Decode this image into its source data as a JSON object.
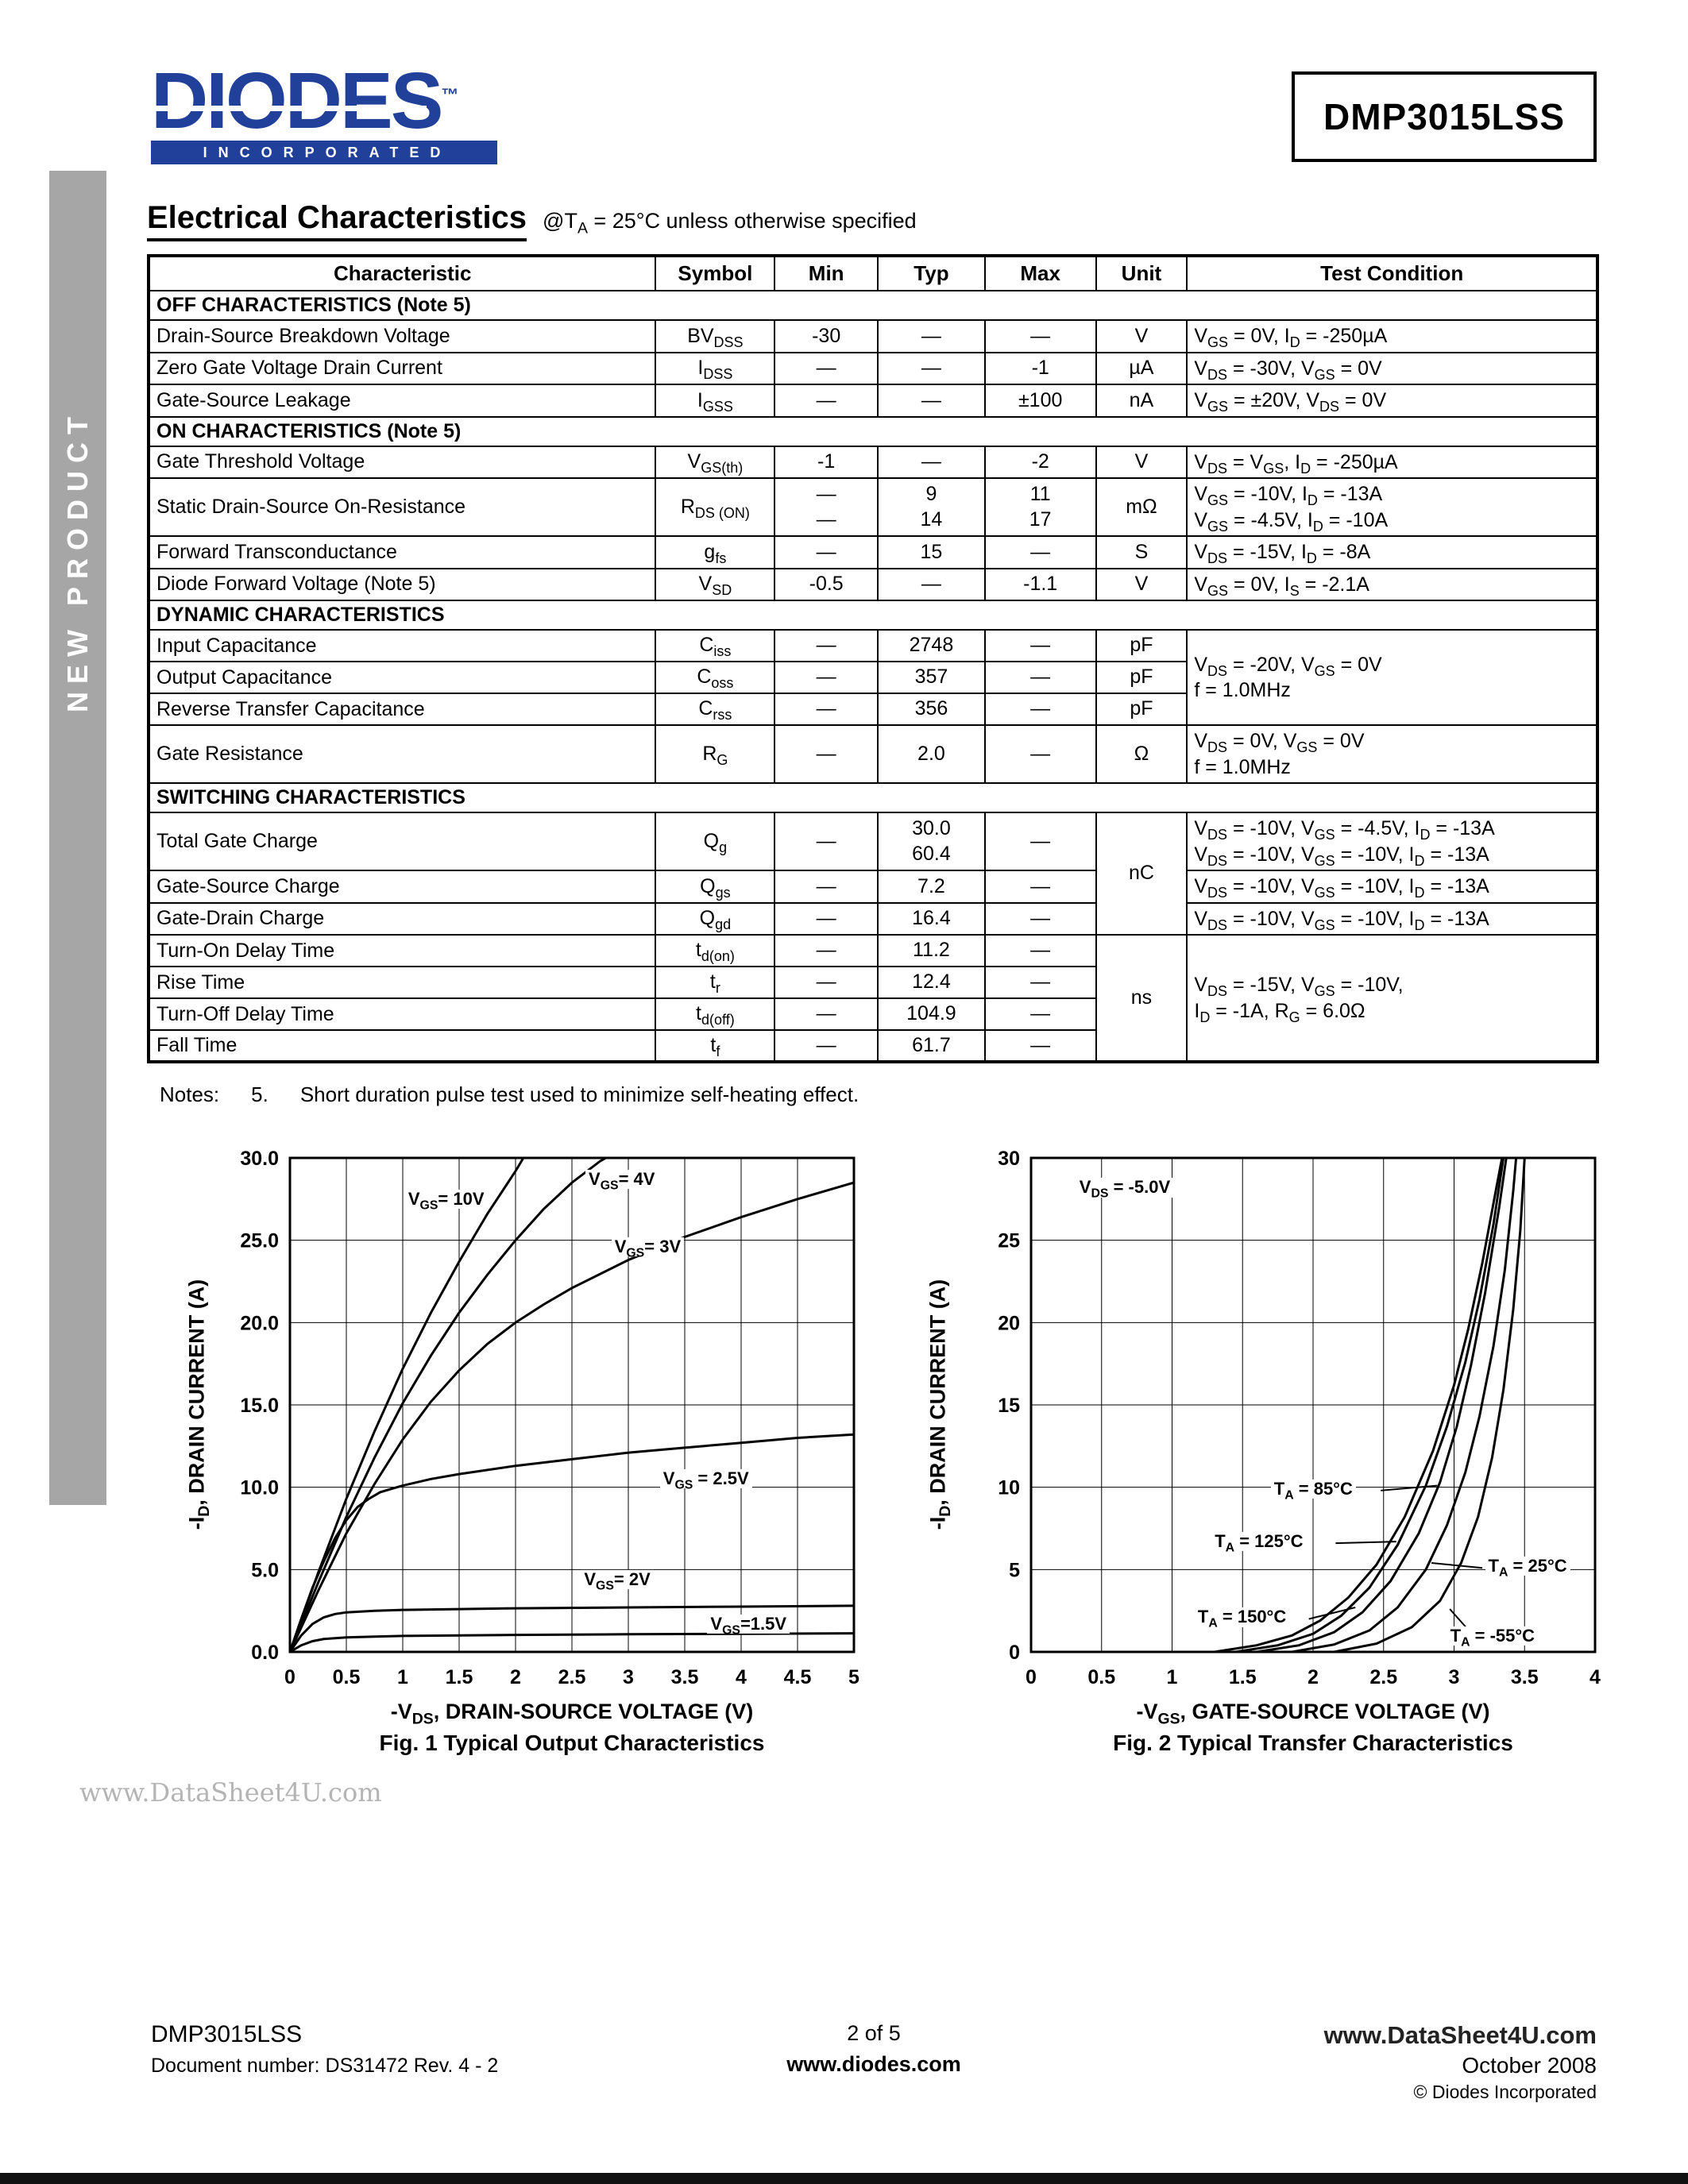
{
  "header": {
    "logo": {
      "brand": "DIODES",
      "tm": "™",
      "incorporated": "INCORPORATED"
    },
    "part_number": "DMP3015LSS"
  },
  "sidebar": {
    "label": "NEW PRODUCT"
  },
  "title": {
    "main": "Electrical Characteristics",
    "condition_html": "@T<sub>A</sub> = 25°C unless otherwise specified"
  },
  "table": {
    "headers": [
      "Characteristic",
      "Symbol",
      "Min",
      "Typ",
      "Max",
      "Unit",
      "Test Condition"
    ],
    "rows": [
      {
        "sec": "OFF CHARACTERISTICS (Note 5)"
      },
      {
        "c": "Drain-Source Breakdown Voltage",
        "s": "BV<sub>DSS</sub>",
        "mn": "-30",
        "tp": "—",
        "mx": "—",
        "u": "V",
        "tc": "V<sub>GS</sub> = 0V, I<sub>D</sub> = -250µA"
      },
      {
        "c": "Zero Gate Voltage Drain Current",
        "s": "I<sub>DSS</sub>",
        "mn": "—",
        "tp": "—",
        "mx": "-1",
        "u": "µA",
        "tc": "V<sub>DS</sub> = -30V, V<sub>GS</sub> = 0V"
      },
      {
        "c": "Gate-Source Leakage",
        "s": "I<sub>GSS</sub>",
        "mn": "—",
        "tp": "—",
        "mx": "±100",
        "u": "nA",
        "tc": "V<sub>GS</sub> = ±20V, V<sub>DS</sub> = 0V"
      },
      {
        "sec": "ON CHARACTERISTICS (Note 5)"
      },
      {
        "c": "Gate Threshold Voltage",
        "s": "V<sub>GS(th)</sub>",
        "mn": "-1",
        "tp": "—",
        "mx": "-2",
        "u": "V",
        "tc": "V<sub>DS</sub> = V<sub>GS</sub>, I<sub>D</sub> = -250µA"
      },
      {
        "c": "Static Drain-Source On-Resistance",
        "s": "R<sub>DS (ON)</sub>",
        "mn": "—<br>—",
        "tp": "9<br>14",
        "mx": "11<br>17",
        "u": "mΩ",
        "tc": "V<sub>GS</sub> = -10V, I<sub>D</sub> = -13A<br>V<sub>GS</sub> = -4.5V, I<sub>D</sub> = -10A"
      },
      {
        "c": "Forward Transconductance",
        "s": "g<sub>fs</sub>",
        "mn": "—",
        "tp": "15",
        "mx": "—",
        "u": "S",
        "tc": "V<sub>DS</sub> = -15V, I<sub>D</sub> = -8A"
      },
      {
        "c": "Diode Forward Voltage (Note 5)",
        "s": "V<sub>SD</sub>",
        "mn": "-0.5",
        "tp": "—",
        "mx": "-1.1",
        "u": "V",
        "tc": "V<sub>GS</sub> = 0V, I<sub>S</sub> = -2.1A"
      },
      {
        "sec": "DYNAMIC CHARACTERISTICS"
      },
      {
        "c": "Input Capacitance",
        "s": "C<sub>iss</sub>",
        "mn": "—",
        "tp": "2748",
        "mx": "—",
        "u": "pF",
        "tc": "V<sub>DS</sub> = -20V, V<sub>GS</sub> = 0V<br>f = 1.0MHz"
      },
      {
        "c": "Output Capacitance",
        "s": "C<sub>oss</sub>",
        "mn": "—",
        "tp": "357",
        "mx": "—",
        "u": "pF"
      },
      {
        "c": "Reverse Transfer Capacitance",
        "s": "C<sub>rss</sub>",
        "mn": "—",
        "tp": "356",
        "mx": "—",
        "u": "pF"
      },
      {
        "c": "Gate Resistance",
        "s": "R<sub>G</sub>",
        "mn": "—",
        "tp": "2.0",
        "mx": "—",
        "u": "Ω",
        "tc": "V<sub>DS</sub> = 0V, V<sub>GS</sub> = 0V<br>f = 1.0MHz"
      },
      {
        "sec": "SWITCHING CHARACTERISTICS"
      },
      {
        "c": "Total Gate Charge",
        "s": "Q<sub>g</sub>",
        "mn": "—",
        "tp": "30.0<br>60.4",
        "mx": "—",
        "u": "nC",
        "tc": "V<sub>DS</sub> = -10V, V<sub>GS</sub> = -4.5V, I<sub>D</sub> = -13A<br>V<sub>DS</sub> = -10V, V<sub>GS</sub> = -10V, I<sub>D</sub> = -13A"
      },
      {
        "c": "Gate-Source Charge",
        "s": "Q<sub>gs</sub>",
        "mn": "—",
        "tp": "7.2",
        "mx": "—",
        "tc": "V<sub>DS</sub> = -10V, V<sub>GS</sub> = -10V, I<sub>D</sub> = -13A"
      },
      {
        "c": "Gate-Drain Charge",
        "s": "Q<sub>gd</sub>",
        "mn": "—",
        "tp": "16.4",
        "mx": "—",
        "tc": "V<sub>DS</sub> = -10V, V<sub>GS</sub> = -10V, I<sub>D</sub> = -13A"
      },
      {
        "c": "Turn-On Delay Time",
        "s": "t<sub>d(on)</sub>",
        "mn": "—",
        "tp": "11.2",
        "mx": "—",
        "u": "ns",
        "tc": "V<sub>DS</sub> = -15V, V<sub>GS</sub> = -10V,<br>I<sub>D</sub> = -1A, R<sub>G</sub> = 6.0Ω"
      },
      {
        "c": "Rise Time",
        "s": "t<sub>r</sub>",
        "mn": "—",
        "tp": "12.4",
        "mx": "—"
      },
      {
        "c": "Turn-Off Delay Time",
        "s": "t<sub>d(off)</sub>",
        "mn": "—",
        "tp": "104.9",
        "mx": "—"
      },
      {
        "c": "Fall Time",
        "s": "t<sub>f</sub>",
        "mn": "—",
        "tp": "61.7",
        "mx": "—"
      }
    ]
  },
  "notes": {
    "label": "Notes:",
    "num": "5.",
    "text": "Short duration pulse test used to minimize self-heating effect."
  },
  "chart_data": [
    {
      "type": "line",
      "title": "Fig. 1 Typical Output Characteristics",
      "xlabel_html": "-V<sub>DS</sub>, DRAIN-SOURCE VOLTAGE (V)",
      "ylabel_html": "-I<sub>D</sub>, DRAIN CURRENT (A)",
      "xlim": [
        0,
        5
      ],
      "ylim": [
        0,
        30
      ],
      "grid": true,
      "legend": "inline-labels",
      "xticks": [
        0,
        0.5,
        1,
        1.5,
        2,
        2.5,
        3,
        3.5,
        4,
        4.5,
        5
      ],
      "xtick_labels": [
        "0",
        "0.5",
        "1",
        "1.5",
        "2",
        "2.5",
        "3",
        "3.5",
        "4",
        "4.5",
        "5"
      ],
      "yticks": [
        0,
        5,
        10,
        15,
        20,
        25,
        30
      ],
      "ytick_labels": [
        "0.0",
        "5.0",
        "10.0",
        "15.0",
        "20.0",
        "25.0",
        "30.0"
      ],
      "series": [
        {
          "name": "VGS = 10V",
          "points": [
            [
              0,
              0
            ],
            [
              0.25,
              4.8
            ],
            [
              0.5,
              9.3
            ],
            [
              0.75,
              13.4
            ],
            [
              1.0,
              17.2
            ],
            [
              1.25,
              20.6
            ],
            [
              1.5,
              23.7
            ],
            [
              1.75,
              26.6
            ],
            [
              2.0,
              29.2
            ],
            [
              2.07,
              30
            ]
          ]
        },
        {
          "name": "VGS = 4V",
          "points": [
            [
              0,
              0
            ],
            [
              0.25,
              4.2
            ],
            [
              0.5,
              8.2
            ],
            [
              0.75,
              11.8
            ],
            [
              1.0,
              15.1
            ],
            [
              1.25,
              18.0
            ],
            [
              1.5,
              20.6
            ],
            [
              1.75,
              22.9
            ],
            [
              2.0,
              25.0
            ],
            [
              2.25,
              26.9
            ],
            [
              2.5,
              28.5
            ],
            [
              2.75,
              29.8
            ],
            [
              2.8,
              30
            ]
          ]
        },
        {
          "name": "VGS = 3V",
          "points": [
            [
              0,
              0
            ],
            [
              0.25,
              3.7
            ],
            [
              0.5,
              7.2
            ],
            [
              0.75,
              10.2
            ],
            [
              1.0,
              12.9
            ],
            [
              1.25,
              15.2
            ],
            [
              1.5,
              17.1
            ],
            [
              1.75,
              18.7
            ],
            [
              2.0,
              20.0
            ],
            [
              2.25,
              21.1
            ],
            [
              2.5,
              22.1
            ],
            [
              3.0,
              23.8
            ],
            [
              3.5,
              25.2
            ],
            [
              4.0,
              26.4
            ],
            [
              4.5,
              27.5
            ],
            [
              5.0,
              28.5
            ]
          ]
        },
        {
          "name": "VGS = 2.5V",
          "points": [
            [
              0,
              0
            ],
            [
              0.1,
              2.0
            ],
            [
              0.2,
              3.9
            ],
            [
              0.3,
              5.5
            ],
            [
              0.4,
              6.9
            ],
            [
              0.5,
              8.0
            ],
            [
              0.6,
              8.8
            ],
            [
              0.7,
              9.3
            ],
            [
              0.8,
              9.7
            ],
            [
              0.9,
              9.9
            ],
            [
              1.0,
              10.1
            ],
            [
              1.25,
              10.5
            ],
            [
              1.5,
              10.8
            ],
            [
              2.0,
              11.3
            ],
            [
              2.5,
              11.7
            ],
            [
              3.0,
              12.1
            ],
            [
              3.5,
              12.4
            ],
            [
              4.0,
              12.7
            ],
            [
              4.5,
              13.0
            ],
            [
              5.0,
              13.2
            ]
          ]
        },
        {
          "name": "VGS = 2V",
          "points": [
            [
              0,
              0
            ],
            [
              0.1,
              1.0
            ],
            [
              0.2,
              1.7
            ],
            [
              0.3,
              2.1
            ],
            [
              0.4,
              2.3
            ],
            [
              0.5,
              2.4
            ],
            [
              0.75,
              2.5
            ],
            [
              1.0,
              2.55
            ],
            [
              1.5,
              2.6
            ],
            [
              2.0,
              2.65
            ],
            [
              3.0,
              2.7
            ],
            [
              4.0,
              2.75
            ],
            [
              5.0,
              2.8
            ]
          ]
        },
        {
          "name": "VGS = 1.5V",
          "points": [
            [
              0,
              0
            ],
            [
              0.1,
              0.4
            ],
            [
              0.2,
              0.65
            ],
            [
              0.3,
              0.78
            ],
            [
              0.5,
              0.88
            ],
            [
              0.75,
              0.93
            ],
            [
              1.0,
              0.97
            ],
            [
              1.5,
              1.0
            ],
            [
              2.0,
              1.03
            ],
            [
              3.0,
              1.07
            ],
            [
              4.0,
              1.1
            ],
            [
              5.0,
              1.13
            ]
          ]
        }
      ],
      "annotations": [
        {
          "html": "V<sub>GS</sub>= 10V",
          "x": 1.02,
          "y": 27.5
        },
        {
          "html": "V<sub>GS</sub>= 4V",
          "x": 2.62,
          "y": 28.7
        },
        {
          "html": "V<sub>GS</sub>= 3V",
          "x": 2.85,
          "y": 24.6
        },
        {
          "html": "V<sub>GS</sub> = 2.5V",
          "x": 3.28,
          "y": 10.5
        },
        {
          "html": "V<sub>GS</sub>= 2V",
          "x": 2.58,
          "y": 4.4
        },
        {
          "html": "V<sub>GS</sub>=1.5V",
          "x": 3.7,
          "y": 1.7
        }
      ]
    },
    {
      "type": "line",
      "title": "Fig. 2  Typical Transfer Characteristics",
      "xlabel_html": "-V<sub>GS</sub>, GATE-SOURCE VOLTAGE (V)",
      "ylabel_html": "-I<sub>D</sub>, DRAIN CURRENT (A)",
      "xlim": [
        0,
        4
      ],
      "ylim": [
        0,
        30
      ],
      "grid": true,
      "legend": "inline-labels",
      "xticks": [
        0,
        0.5,
        1,
        1.5,
        2,
        2.5,
        3,
        3.5,
        4
      ],
      "xtick_labels": [
        "0",
        "0.5",
        "1",
        "1.5",
        "2",
        "2.5",
        "3",
        "3.5",
        "4"
      ],
      "yticks": [
        0,
        5,
        10,
        15,
        20,
        25,
        30
      ],
      "ytick_labels": [
        "0",
        "5",
        "10",
        "15",
        "20",
        "25",
        "30"
      ],
      "series": [
        {
          "name": "TA = 150°C",
          "points": [
            [
              1.3,
              0
            ],
            [
              1.6,
              0.4
            ],
            [
              1.85,
              1.0
            ],
            [
              2.05,
              1.9
            ],
            [
              2.25,
              3.3
            ],
            [
              2.45,
              5.3
            ],
            [
              2.65,
              8.2
            ],
            [
              2.85,
              12.2
            ],
            [
              3.0,
              16.2
            ],
            [
              3.1,
              19.6
            ],
            [
              3.2,
              23.6
            ],
            [
              3.3,
              28.2
            ],
            [
              3.34,
              30
            ]
          ]
        },
        {
          "name": "TA = 125°C",
          "points": [
            [
              1.45,
              0
            ],
            [
              1.75,
              0.4
            ],
            [
              2.0,
              1.1
            ],
            [
              2.2,
              2.2
            ],
            [
              2.4,
              3.9
            ],
            [
              2.6,
              6.5
            ],
            [
              2.8,
              10.1
            ],
            [
              2.95,
              13.7
            ],
            [
              3.08,
              17.6
            ],
            [
              3.18,
              21.4
            ],
            [
              3.28,
              26.0
            ],
            [
              3.35,
              30
            ]
          ]
        },
        {
          "name": "TA = 85°C",
          "points": [
            [
              1.6,
              0
            ],
            [
              1.9,
              0.4
            ],
            [
              2.15,
              1.2
            ],
            [
              2.35,
              2.4
            ],
            [
              2.55,
              4.3
            ],
            [
              2.75,
              7.2
            ],
            [
              2.9,
              10.3
            ],
            [
              3.02,
              13.7
            ],
            [
              3.12,
              17.4
            ],
            [
              3.22,
              21.8
            ],
            [
              3.32,
              27.0
            ],
            [
              3.37,
              30
            ]
          ]
        },
        {
          "name": "TA = 25°C",
          "points": [
            [
              1.85,
              0
            ],
            [
              2.15,
              0.45
            ],
            [
              2.4,
              1.3
            ],
            [
              2.6,
              2.7
            ],
            [
              2.8,
              5.0
            ],
            [
              2.95,
              7.7
            ],
            [
              3.08,
              10.9
            ],
            [
              3.18,
              14.3
            ],
            [
              3.28,
              18.6
            ],
            [
              3.36,
              23.2
            ],
            [
              3.42,
              28.0
            ],
            [
              3.44,
              30
            ]
          ]
        },
        {
          "name": "TA = -55°C",
          "points": [
            [
              2.15,
              0
            ],
            [
              2.45,
              0.5
            ],
            [
              2.7,
              1.5
            ],
            [
              2.9,
              3.1
            ],
            [
              3.05,
              5.4
            ],
            [
              3.17,
              8.2
            ],
            [
              3.27,
              11.8
            ],
            [
              3.35,
              15.9
            ],
            [
              3.42,
              20.8
            ],
            [
              3.47,
              25.6
            ],
            [
              3.5,
              30
            ]
          ]
        }
      ],
      "annotations": [
        {
          "html": "V<sub>DS</sub> = -5.0V",
          "x": 0.32,
          "y": 28.2
        },
        {
          "html": "T<sub>A</sub> = 85°C",
          "x": 1.7,
          "y": 9.9,
          "leader": [
            2.48,
            9.8,
            2.88,
            10.1
          ]
        },
        {
          "html": "T<sub>A</sub> = 125°C",
          "x": 1.28,
          "y": 6.7,
          "leader": [
            2.16,
            6.6,
            2.59,
            6.7
          ]
        },
        {
          "html": "T<sub>A</sub> = 25°C",
          "x": 3.22,
          "y": 5.2,
          "leader": [
            3.2,
            5.1,
            2.84,
            5.4
          ]
        },
        {
          "html": "T<sub>A</sub> = 150°C",
          "x": 1.16,
          "y": 2.1,
          "leader": [
            1.97,
            2.0,
            2.3,
            2.7
          ]
        },
        {
          "html": "T<sub>A</sub> = -55°C",
          "x": 2.95,
          "y": 0.95,
          "leader": [
            3.1,
            1.35,
            2.97,
            2.6
          ]
        }
      ]
    }
  ],
  "watermark": "www.DataSheet4U.com",
  "footer": {
    "part": "DMP3015LSS",
    "doc": "Document number: DS31472 Rev. 4 - 2",
    "page": "2 of 5",
    "site": "www.diodes.com",
    "site2": "www.DataSheet4U.com",
    "date": "October 2008",
    "copyright": "© Diodes Incorporated"
  }
}
